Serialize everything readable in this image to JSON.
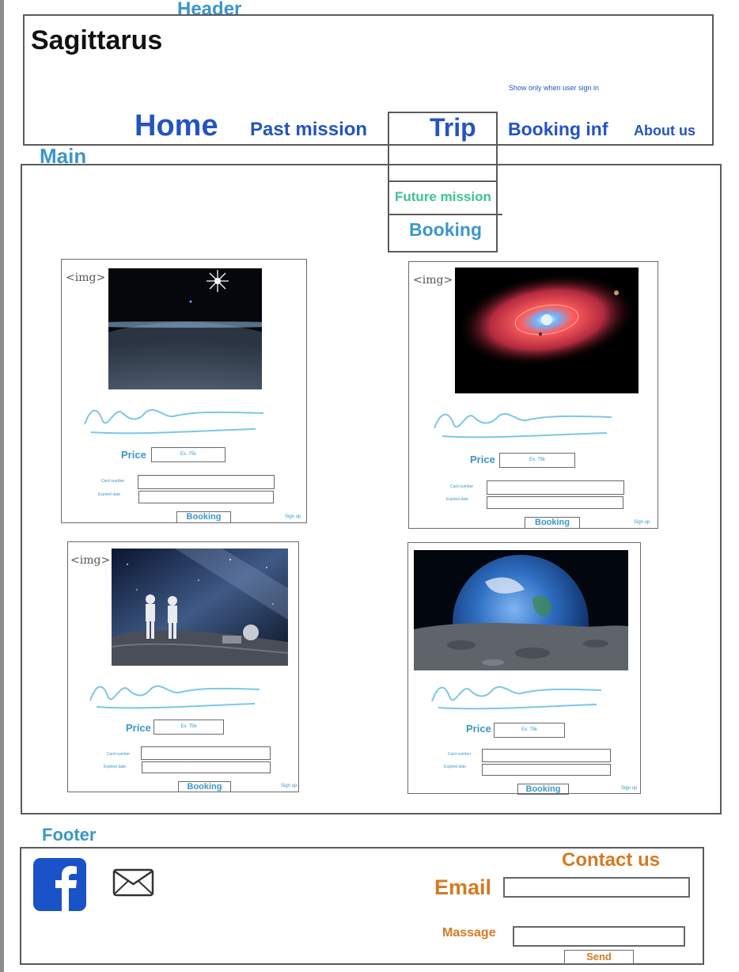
{
  "labels": {
    "header": "Header",
    "main": "Main",
    "footer": "Footer"
  },
  "header": {
    "brand": "Sagittarus",
    "signin_note": "Show only when user sign in",
    "nav": [
      "Home",
      "Past mission",
      "Trip",
      "Booking inf",
      "About us"
    ],
    "trip_dropdown": [
      "Future mission",
      "Booking"
    ]
  },
  "cards": [
    {
      "img_tag": "<img>",
      "image": "earth-sunrise",
      "price_label": "Price",
      "price_placeholder": "Ex. 75k",
      "card_number_label": "Card number",
      "expired_label": "Expired date",
      "booking_label": "Booking",
      "signup_label": "Sign up"
    },
    {
      "img_tag": "<img>",
      "image": "red-nebula",
      "price_label": "Price",
      "price_placeholder": "Ex. 75k",
      "card_number_label": "Card number",
      "expired_label": "Expired date",
      "booking_label": "Booking",
      "signup_label": "Sign up"
    },
    {
      "img_tag": "<img>",
      "image": "astronauts-moon",
      "price_label": "Price",
      "price_placeholder": "Ex. 75k",
      "card_number_label": "Card number",
      "expired_label": "Expired date",
      "booking_label": "Booking",
      "signup_label": "Sign up"
    },
    {
      "img_tag": "",
      "image": "earth-from-moon",
      "price_label": "Price",
      "price_placeholder": "Ex. 75k",
      "card_number_label": "Card number",
      "expired_label": "Expired date",
      "booking_label": "Booking",
      "signup_label": "Sign up"
    }
  ],
  "footer": {
    "contact_title": "Contact us",
    "email_label": "Email",
    "message_label": "Massage",
    "send_label": "Send",
    "icons": [
      "facebook-icon",
      "mail-icon"
    ]
  },
  "colors": {
    "label_blue": "#3a97c9",
    "nav_blue": "#2453c2",
    "dropdown_green": "#3dc48f",
    "orange": "#d47a22",
    "facebook_blue": "#1a52c8"
  }
}
